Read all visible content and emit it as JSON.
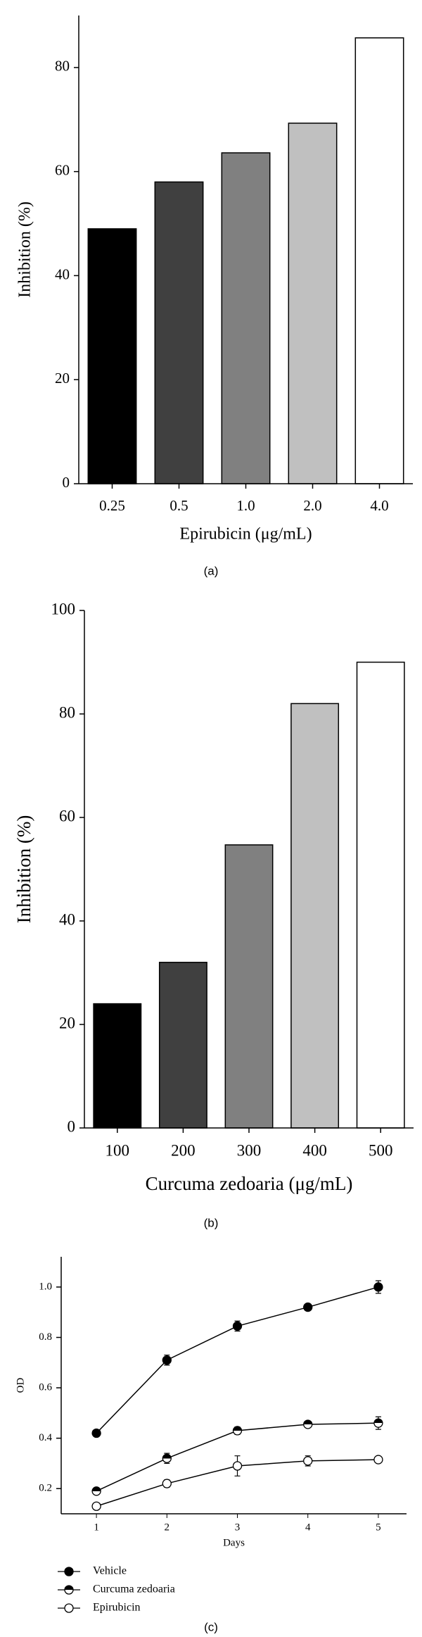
{
  "chart_data": [
    {
      "type": "bar",
      "caption": "(a)",
      "y_label": "Inhibition (%)",
      "x_label": "Epirubicin (μg/mL)",
      "categories": [
        "0.25",
        "0.5",
        "1.0",
        "2.0",
        "4.0"
      ],
      "values": [
        49,
        58,
        63.6,
        69.3,
        85.7
      ],
      "colors": [
        "#000000",
        "#404040",
        "#808080",
        "#c0c0c0",
        "#ffffff"
      ],
      "ylim": [
        0,
        90
      ],
      "yticks": [
        0,
        20,
        40,
        60,
        80
      ]
    },
    {
      "type": "bar",
      "caption": "(b)",
      "y_label": "Inhibition (%)",
      "x_label": "Curcuma zedoaria (μg/mL)",
      "categories": [
        "100",
        "200",
        "300",
        "400",
        "500"
      ],
      "values": [
        24,
        32,
        54.7,
        82,
        90
      ],
      "colors": [
        "#000000",
        "#404040",
        "#808080",
        "#c0c0c0",
        "#ffffff"
      ],
      "ylim": [
        0,
        100
      ],
      "yticks": [
        0,
        20,
        40,
        60,
        80,
        100
      ]
    },
    {
      "type": "line",
      "caption": "(c)",
      "x_label": "Days",
      "y_label": "OD",
      "x": [
        1,
        2,
        3,
        4,
        5
      ],
      "xlim": [
        0.5,
        5.4
      ],
      "xticks": [
        1,
        2,
        3,
        4,
        5
      ],
      "ylim": [
        0.1,
        1.12
      ],
      "yticks": [
        0.2,
        0.4,
        0.6,
        0.8,
        {
          "value": 1,
          "label": "1.0"
        }
      ],
      "series": [
        {
          "name": "Vehicle",
          "color": "#000000",
          "marker": "filled",
          "values": [
            0.42,
            0.71,
            0.845,
            0.92,
            1.0
          ],
          "errors": [
            0.01,
            0.02,
            0.02,
            0.01,
            0.025
          ]
        },
        {
          "name": "Curcuma zedoaria",
          "color": "#000000",
          "marker": "half",
          "values": [
            0.19,
            0.32,
            0.43,
            0.455,
            0.46
          ],
          "errors": [
            0.01,
            0.02,
            0.015,
            0.01,
            0.025
          ]
        },
        {
          "name": "Epirubicin",
          "color": "#000000",
          "marker": "open",
          "values": [
            0.13,
            0.22,
            0.29,
            0.31,
            0.315
          ],
          "errors": [
            0.01,
            0.015,
            0.04,
            0.02,
            0.01
          ]
        }
      ]
    }
  ]
}
